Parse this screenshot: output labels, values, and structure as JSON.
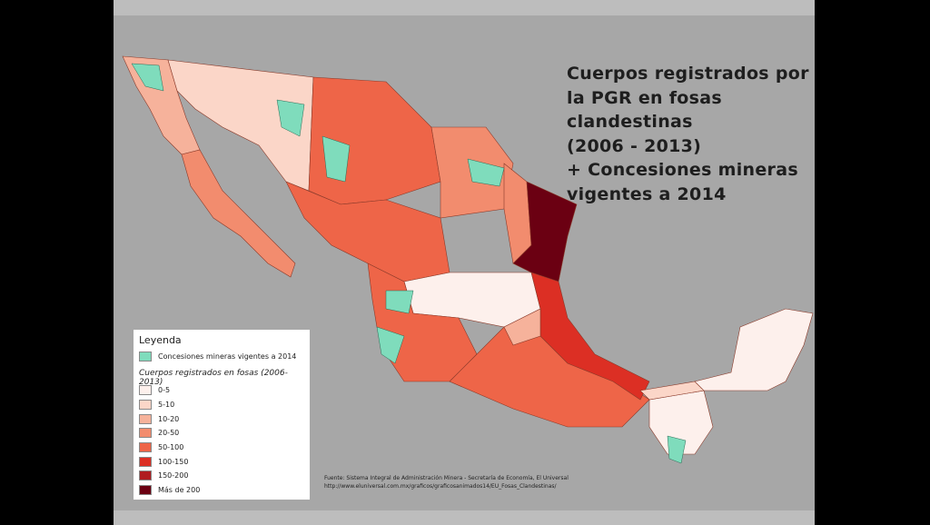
{
  "title": [
    "Cuerpos registrados por",
    "la PGR en fosas",
    "clandestinas",
    "(2006 - 2013)",
    "+ Concesiones mineras",
    "vigentes a 2014"
  ],
  "legend": {
    "title": "Leyenda",
    "concessions": {
      "label": "Concesiones mineras vigentes a 2014",
      "color": "#7fdcbc"
    },
    "subtitle": "Cuerpos registrados en fosas (2006-2013)",
    "classes": [
      {
        "label": "0-5",
        "color": "#fdf0ec"
      },
      {
        "label": "5-10",
        "color": "#fbd6c8"
      },
      {
        "label": "10-20",
        "color": "#f6b29b"
      },
      {
        "label": "20-50",
        "color": "#f28c6e"
      },
      {
        "label": "50-100",
        "color": "#ee6548"
      },
      {
        "label": "100-150",
        "color": "#dc2f24"
      },
      {
        "label": "150-200",
        "color": "#b01c20"
      },
      {
        "label": "Más de 200",
        "color": "#6b0012"
      }
    ]
  },
  "source": [
    "Fuente: Sistema Integral de Administración Minera - Secretaría de Economía, El Universal",
    "http://www.eluniversal.com.mx/graficos/graficosanimados14/EU_Fosas_Clandestinas/"
  ]
}
